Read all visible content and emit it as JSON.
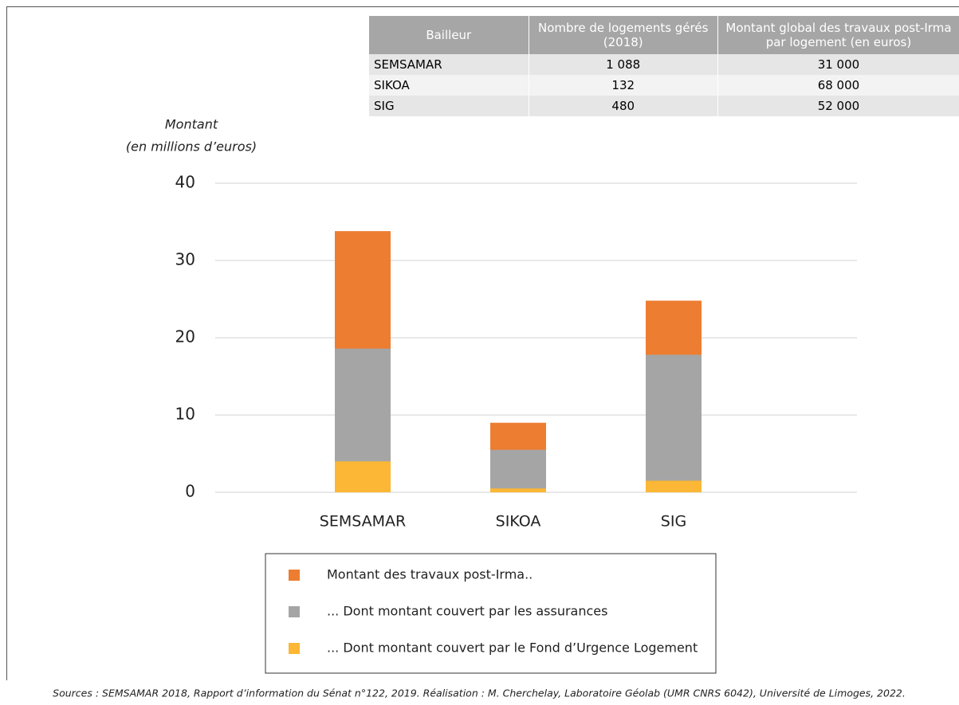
{
  "table": {
    "header": [
      "Bailleur",
      "Nombre de logements gérés (2018)",
      "Montant global des travaux post-Irma par logement (en euros)"
    ],
    "rows": [
      [
        "SEMSAMAR",
        "1 088",
        "31 000"
      ],
      [
        "SIKOA",
        "132",
        "68 000"
      ],
      [
        "SIG",
        "480",
        "52 000"
      ]
    ]
  },
  "chart_data": {
    "type": "bar",
    "y_label_line1": "Montant",
    "y_label_line2": "(en millions d’euros)",
    "categories": [
      "SEMSAMAR",
      "SIKOA",
      "SIG"
    ],
    "series": [
      {
        "name": "Montant des travaux post-Irma..",
        "color": "#ed7d31",
        "values": [
          33.8,
          9,
          24.8
        ]
      },
      {
        "name": "... Dont montant couvert par les assurances",
        "color": "#a5a5a5",
        "values": [
          18.6,
          5.5,
          17.8
        ]
      },
      {
        "name": "... Dont montant couvert par le Fond d’Urgence Logement",
        "color": "#fbb735",
        "values": [
          4,
          0.5,
          1.5
        ]
      }
    ],
    "ylim": [
      0,
      40
    ],
    "yticks": [
      0,
      10,
      20,
      30,
      40
    ],
    "grid": true
  },
  "source": "Sources : SEMSAMAR 2018, Rapport d’information du Sénat n°122, 2019. Réalisation : M. Cherchelay, Laboratoire Géolab (UMR CNRS 6042), Université de Limoges, 2022."
}
